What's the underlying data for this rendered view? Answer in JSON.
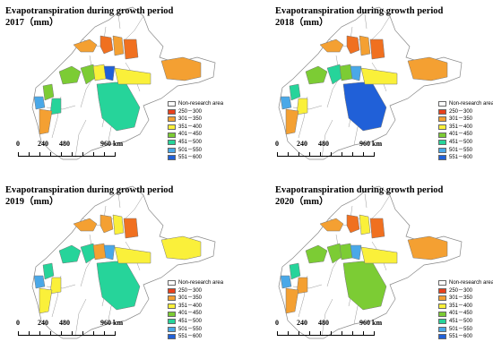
{
  "panels": [
    {
      "title": "Evapotranspiration during growth period 2017（mm）",
      "fills": [
        "#f4a032",
        "#f07020",
        "#f4a032",
        "#f07020",
        "#7ccc34",
        "#7ccc34",
        "#faf03a",
        "#2060d8",
        "#26d49a",
        "#f4a032",
        "#faf03a",
        "#7ccc34",
        "#4aa8e8",
        "#26d49a",
        "#f4a032"
      ]
    },
    {
      "title": "Evapotranspiration during growth period 2018（mm）",
      "fills": [
        "#f4a032",
        "#f07020",
        "#f4a032",
        "#f07020",
        "#7ccc34",
        "#26d49a",
        "#7ccc34",
        "#4aa8e8",
        "#2060d8",
        "#f4a032",
        "#faf03a",
        "#26d49a",
        "#4aa8e8",
        "#faf03a",
        "#f4a032"
      ]
    },
    {
      "title": "Evapotranspiration during growth period 2019（mm）",
      "fills": [
        "#f4a032",
        "#f4a032",
        "#faf03a",
        "#f07020",
        "#26d49a",
        "#26d49a",
        "#f4a032",
        "#4aa8e8",
        "#26d49a",
        "#faf03a",
        "#faf03a",
        "#26d49a",
        "#4aa8e8",
        "#faf03a",
        "#faf03a"
      ]
    },
    {
      "title": "Evapotranspiration during growth period 2020（mm）",
      "fills": [
        "#f4a032",
        "#f07020",
        "#faf03a",
        "#f07020",
        "#7ccc34",
        "#7ccc34",
        "#7ccc34",
        "#4aa8e8",
        "#7ccc34",
        "#f4a032",
        "#faf03a",
        "#26d49a",
        "#4aa8e8",
        "#f4a032",
        "#f4a032"
      ]
    }
  ],
  "legend": [
    {
      "label": "Non-research area",
      "color": "#ffffff"
    },
    {
      "label": "250－300",
      "color": "#e8401c"
    },
    {
      "label": "301－350",
      "color": "#f4a032"
    },
    {
      "label": "351－400",
      "color": "#faf03a"
    },
    {
      "label": "401－450",
      "color": "#7ccc34"
    },
    {
      "label": "451－500",
      "color": "#26d49a"
    },
    {
      "label": "501－550",
      "color": "#4aa8e8"
    },
    {
      "label": "551－600",
      "color": "#2060d8"
    }
  ],
  "scale": {
    "labels": [
      "0",
      "240",
      "480",
      "960 km"
    ]
  }
}
